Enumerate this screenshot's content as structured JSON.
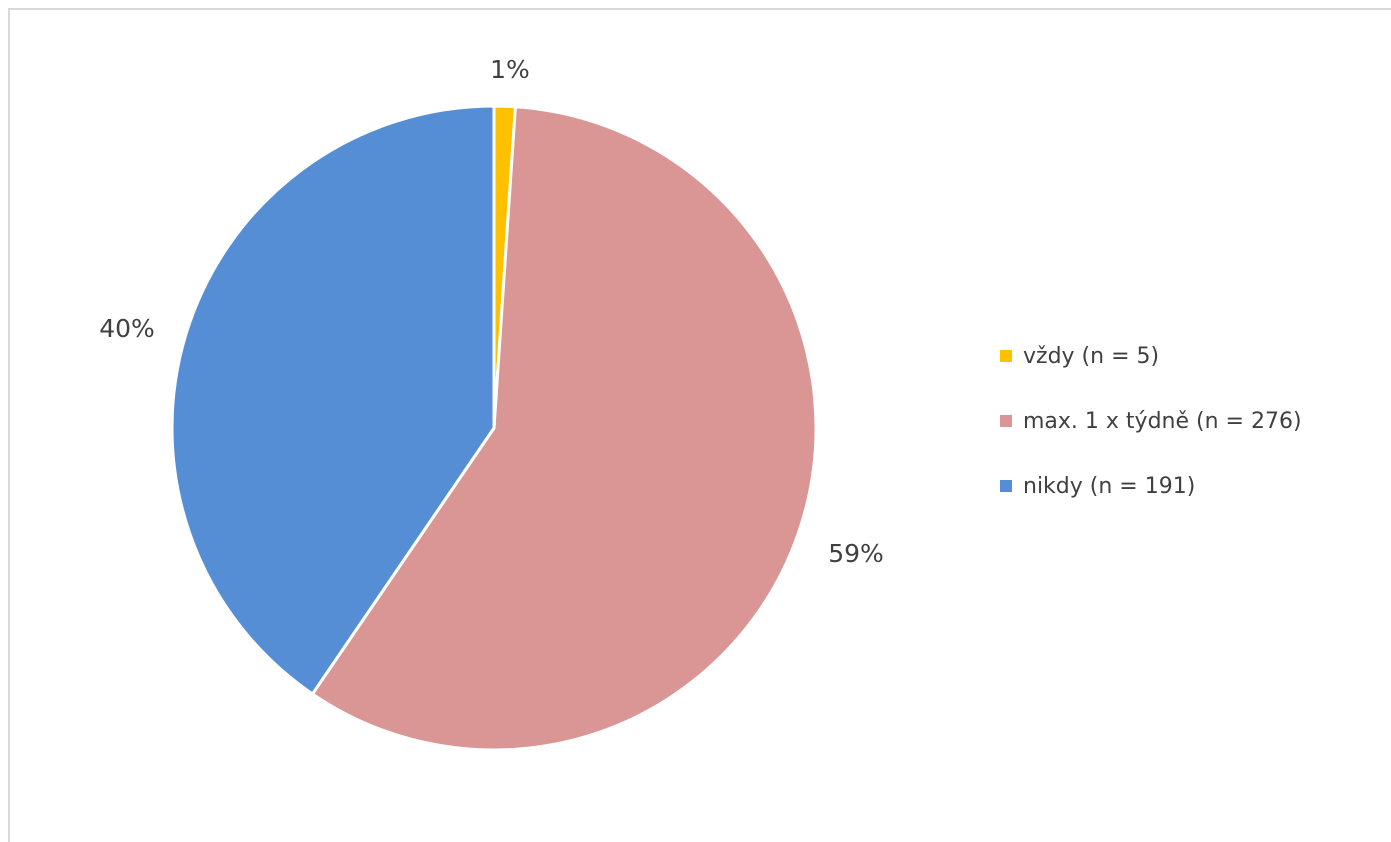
{
  "chart_data": {
    "type": "pie",
    "title": "",
    "legend_position": "right",
    "slices": [
      {
        "label": "vždy (n = 5)",
        "value": 5,
        "percent_label": "1%",
        "color": "#FFC000"
      },
      {
        "label": "max. 1 x týdně (n = 276)",
        "value": 276,
        "percent_label": "59%",
        "color": "#D99694"
      },
      {
        "label": "nikdy (n = 191)",
        "value": 191,
        "percent_label": "40%",
        "color": "#558ED5"
      }
    ]
  }
}
